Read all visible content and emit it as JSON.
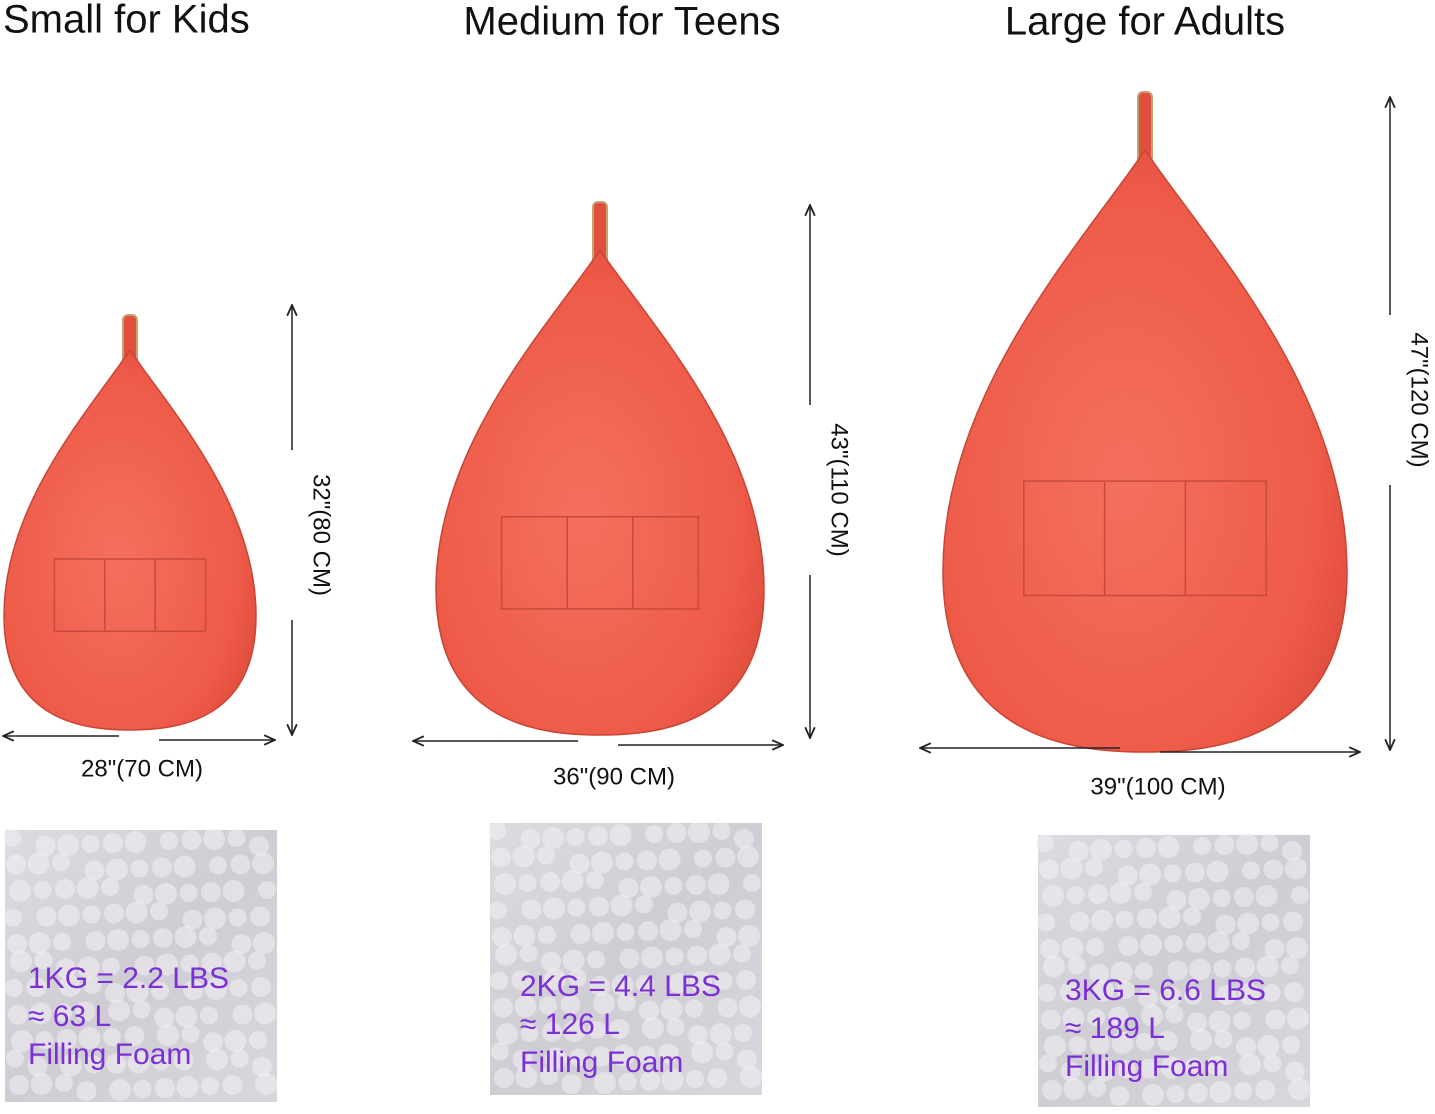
{
  "sizes": [
    {
      "title": "Small for Kids",
      "height": "32\"(80 CM)",
      "width": "28\"(70 CM)",
      "foam": [
        "1KG = 2.2 LBS",
        "≈ 63 L",
        "Filling Foam"
      ]
    },
    {
      "title": "Medium for Teens",
      "height": "43\"(110 CM)",
      "width": "36\"(90 CM)",
      "foam": [
        "2KG = 4.4 LBS",
        "≈ 126 L",
        "Filling Foam"
      ]
    },
    {
      "title": "Large for Adults",
      "height": "47\"(120 CM)",
      "width": "39\"(100 CM)",
      "foam": [
        "3KG = 6.6 LBS",
        "≈ 189 L",
        "Filling Foam"
      ]
    }
  ]
}
